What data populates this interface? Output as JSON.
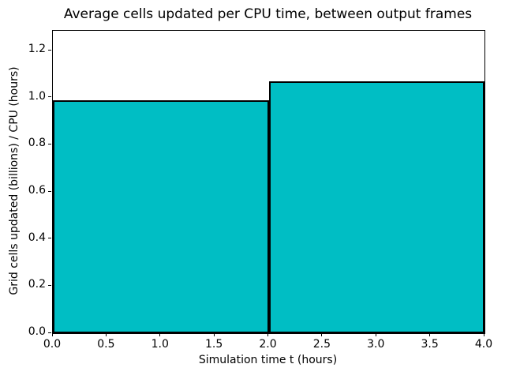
{
  "chart_data": {
    "type": "bar",
    "title": "Average cells updated per CPU time, between output frames",
    "xlabel": "Simulation time t (hours)",
    "ylabel": "Grid cells updated (billions) / CPU (hours)",
    "bars": [
      {
        "x_start": 0.0,
        "x_end": 2.0,
        "value": 0.99
      },
      {
        "x_start": 2.0,
        "x_end": 4.0,
        "value": 1.07
      }
    ],
    "xlim": [
      0.0,
      4.0
    ],
    "ylim": [
      0.0,
      1.284
    ],
    "xticks": [
      0.0,
      0.5,
      1.0,
      1.5,
      2.0,
      2.5,
      3.0,
      3.5,
      4.0
    ],
    "yticks": [
      0.0,
      0.2,
      0.4,
      0.6,
      0.8,
      1.0,
      1.2
    ],
    "bar_color": "#00bec4",
    "edge_color": "#000000",
    "background_color": "#ffffff",
    "grid": false,
    "legend": null
  }
}
